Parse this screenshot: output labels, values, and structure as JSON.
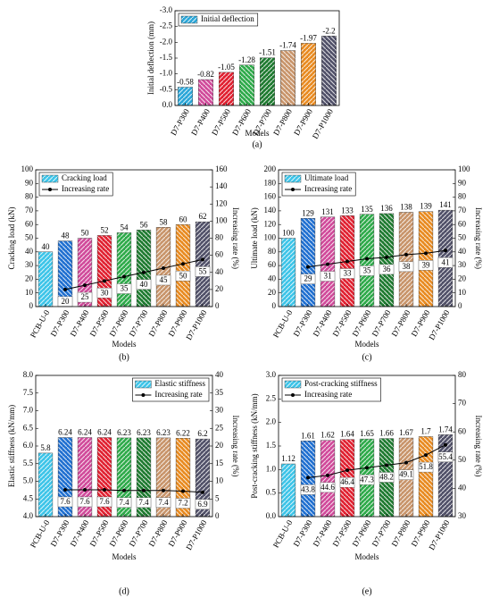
{
  "chart_data": [
    {
      "type": "bar",
      "label": "(a)",
      "xlabel": "Models",
      "ylabel": "Initial deflection (mm)",
      "legend": "upper left",
      "categories": [
        "D7-P300",
        "D7-P400",
        "D7-P500",
        "D7-P600",
        "D7-P700",
        "D7-P800",
        "D7-P900",
        "D7-P1000"
      ],
      "series": [
        {
          "name": "Initial deflection",
          "colors": [
            "#2aa6d8",
            "#d04a9a",
            "#e02030",
            "#2eaa4a",
            "#1e7a30",
            "#c8946a",
            "#e88a20",
            "#505068"
          ],
          "values": [
            -0.58,
            -0.82,
            -1.05,
            -1.28,
            -1.51,
            -1.74,
            -1.97,
            -2.2
          ]
        }
      ],
      "ylim": [
        0,
        -3
      ],
      "yticks": [
        {
          "value": 0,
          "label": "0.0"
        },
        -0.5,
        {
          "value": -1,
          "label": "-1.0"
        },
        -1.5,
        {
          "value": -2,
          "label": "-2.0"
        },
        -2.5,
        {
          "value": -3,
          "label": "-3.0"
        }
      ]
    },
    {
      "type": "bar",
      "label": "(b)",
      "xlabel": "Models",
      "ylabel": "Cracking load (kN)",
      "y2label": "Increasing rate (%)",
      "legend": "upper left",
      "categories": [
        "PCB-U-0",
        "D7-P300",
        "D7-P400",
        "D7-P500",
        "D7-P600",
        "D7-P700",
        "D7-P800",
        "D7-P900",
        "D7-P1000"
      ],
      "series": [
        {
          "name": "Cracking load",
          "colors": [
            "#3cc4e8",
            "#1f6fd0",
            "#d04a9a",
            "#e02030",
            "#2eaa4a",
            "#1e7a30",
            "#c8946a",
            "#e88a20",
            "#505068"
          ],
          "values": [
            40,
            48,
            50,
            52,
            54,
            56,
            58,
            60,
            62
          ]
        },
        {
          "name": "Increasing rate",
          "color": "#000000",
          "axis": "y2",
          "values": [
            null,
            20,
            25,
            30,
            35,
            40,
            45,
            50,
            55
          ]
        }
      ],
      "ylim": [
        0,
        100
      ],
      "yticks": [
        0,
        10,
        20,
        30,
        40,
        50,
        60,
        70,
        80,
        90,
        100
      ],
      "y2lim": [
        0,
        160
      ],
      "y2ticks": [
        0,
        20,
        40,
        60,
        80,
        100,
        120,
        140,
        160
      ]
    },
    {
      "type": "bar",
      "label": "(c)",
      "xlabel": "Models",
      "ylabel": "Ultimate load (kN)",
      "y2label": "Increasing rate (%)",
      "legend": "upper left",
      "categories": [
        "PCB-U-0",
        "D7-P300",
        "D7-P400",
        "D7-P500",
        "D7-P600",
        "D7-P700",
        "D7-P800",
        "D7-P900",
        "D7-P1000"
      ],
      "series": [
        {
          "name": "Ultimate load",
          "colors": [
            "#3cc4e8",
            "#1f6fd0",
            "#d04a9a",
            "#e02030",
            "#2eaa4a",
            "#1e7a30",
            "#c8946a",
            "#e88a20",
            "#505068"
          ],
          "values": [
            100,
            129,
            131,
            133,
            135,
            136,
            138,
            139,
            141
          ]
        },
        {
          "name": "Increasing rate",
          "color": "#000000",
          "axis": "y2",
          "values": [
            null,
            29,
            31,
            33,
            35,
            36,
            38,
            39,
            41
          ]
        }
      ],
      "ylim": [
        0,
        200
      ],
      "yticks": [
        0,
        20,
        40,
        60,
        80,
        100,
        120,
        140,
        160,
        180,
        200
      ],
      "y2lim": [
        0,
        100
      ],
      "y2ticks": [
        0,
        10,
        20,
        30,
        40,
        50,
        60,
        70,
        80,
        90,
        100
      ]
    },
    {
      "type": "bar",
      "label": "(d)",
      "xlabel": "Models",
      "ylabel": "Elastic stiffness (kN/mm)",
      "y2label": "Increasing rate (%)",
      "legend": "upper right",
      "categories": [
        "PCB-U-0",
        "D7-P300",
        "D7-P400",
        "D7-P500",
        "D7-P600",
        "D7-P700",
        "D7-P800",
        "D7-P900",
        "D7-P1000"
      ],
      "series": [
        {
          "name": "Elastic stiffness",
          "colors": [
            "#3cc4e8",
            "#1f6fd0",
            "#d04a9a",
            "#e02030",
            "#2eaa4a",
            "#1e7a30",
            "#c8946a",
            "#e88a20",
            "#505068"
          ],
          "values": [
            5.8,
            6.24,
            6.24,
            6.24,
            6.23,
            6.23,
            6.23,
            6.22,
            6.2
          ]
        },
        {
          "name": "Increasing rate",
          "color": "#000000",
          "axis": "y2",
          "values": [
            null,
            7.6,
            7.6,
            7.6,
            7.4,
            7.4,
            7.4,
            7.2,
            6.9
          ]
        }
      ],
      "ylim": [
        4,
        8
      ],
      "yticks": [
        {
          "value": 4,
          "label": "4.0"
        },
        4.5,
        {
          "value": 5,
          "label": "5.0"
        },
        5.5,
        {
          "value": 6,
          "label": "6.0"
        },
        6.5,
        {
          "value": 7,
          "label": "7.0"
        },
        7.5,
        {
          "value": 8,
          "label": "8.0"
        }
      ],
      "y2lim": [
        0,
        40
      ],
      "y2ticks": [
        0,
        5,
        10,
        15,
        20,
        25,
        30,
        35,
        40
      ]
    },
    {
      "type": "bar",
      "label": "(e)",
      "xlabel": "Models",
      "ylabel": "Post-cracking stiffness (kN/mm)",
      "y2label": "Increasing rate (%)",
      "legend": "upper left",
      "categories": [
        "PCB-U-0",
        "D7-P300",
        "D7-P400",
        "D7-P500",
        "D7-P600",
        "D7-P700",
        "D7-P800",
        "D7-P900",
        "D7-P1000"
      ],
      "series": [
        {
          "name": "Post-cracking stiffness",
          "colors": [
            "#3cc4e8",
            "#1f6fd0",
            "#d04a9a",
            "#e02030",
            "#2eaa4a",
            "#1e7a30",
            "#c8946a",
            "#e88a20",
            "#505068"
          ],
          "values": [
            1.12,
            1.61,
            1.62,
            1.64,
            1.65,
            1.66,
            1.67,
            1.7,
            1.74
          ]
        },
        {
          "name": "Increasing rate",
          "color": "#000000",
          "axis": "y2",
          "values": [
            null,
            43.8,
            44.6,
            46.4,
            47.3,
            48.2,
            49.1,
            51.8,
            55.4
          ]
        }
      ],
      "ylim": [
        0,
        3
      ],
      "yticks": [
        {
          "value": 0,
          "label": "0.0"
        },
        0.5,
        {
          "value": 1,
          "label": "1.0"
        },
        1.5,
        {
          "value": 2,
          "label": "2.0"
        },
        2.5,
        {
          "value": 3,
          "label": "3.0"
        }
      ],
      "y2lim": [
        30,
        80
      ],
      "y2ticks": [
        30,
        40,
        50,
        60,
        70,
        80
      ]
    }
  ]
}
